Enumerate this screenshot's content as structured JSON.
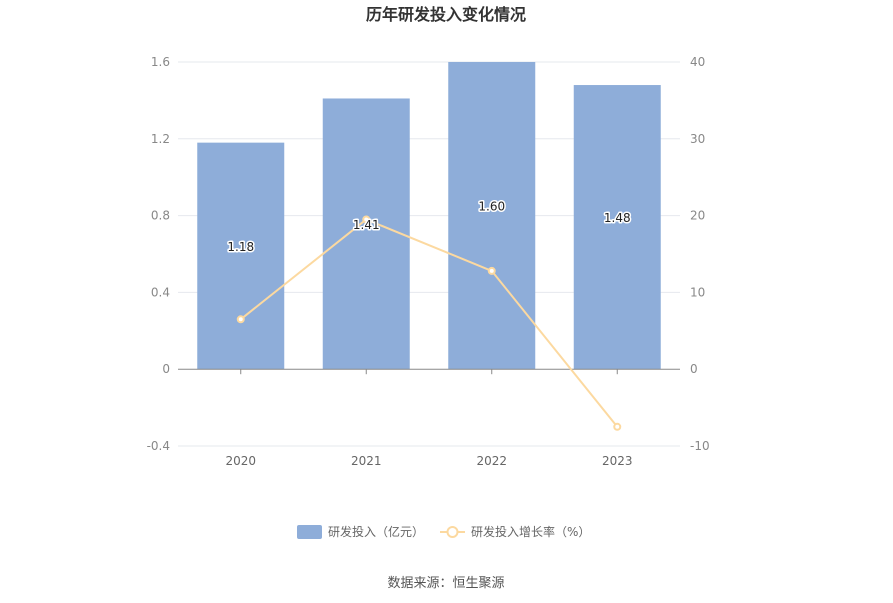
{
  "chart_data": {
    "type": "bar",
    "title": "历年研发投入变化情况",
    "categories": [
      "2020",
      "2021",
      "2022",
      "2023"
    ],
    "series": [
      {
        "name": "研发投入（亿元）",
        "type": "bar",
        "axis": "left",
        "values": [
          1.18,
          1.41,
          1.6,
          1.48
        ],
        "labels": [
          "1.18",
          "1.41",
          "1.60",
          "1.48"
        ],
        "color": "#8eadd9"
      },
      {
        "name": "研发投入增长率（%）",
        "type": "line",
        "axis": "right",
        "values": [
          6.5,
          19.5,
          12.8,
          -7.5
        ],
        "color": "#fcd9a0"
      }
    ],
    "y_left": {
      "min": -0.4,
      "max": 1.6,
      "ticks": [
        1.6,
        1.2,
        0.8,
        0.4,
        0,
        -0.4
      ],
      "tick_labels": [
        "1.6",
        "1.2",
        "0.8",
        "0.4",
        "0",
        "-0.4"
      ]
    },
    "y_right": {
      "min": -10,
      "max": 40,
      "ticks": [
        40,
        30,
        20,
        10,
        0,
        -10
      ],
      "tick_labels": [
        "40",
        "30",
        "20",
        "10",
        "0",
        "-10"
      ]
    },
    "grid": true,
    "legend_position": "bottom"
  },
  "source_label": "数据来源：恒生聚源"
}
